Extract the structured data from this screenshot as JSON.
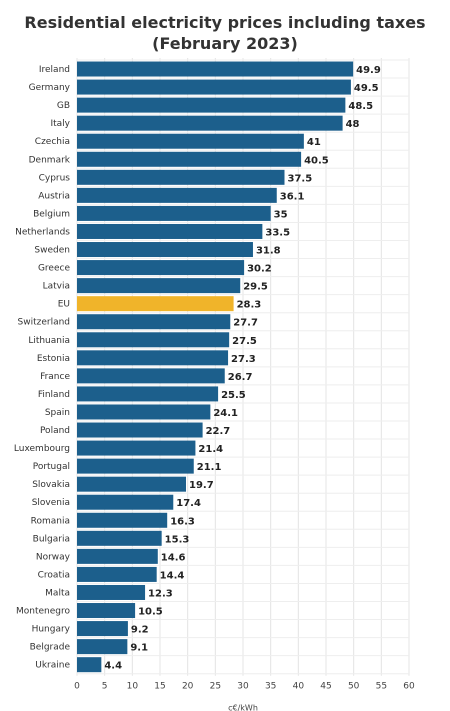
{
  "chart_data": {
    "type": "bar",
    "orientation": "horizontal",
    "title": "Residential electricity prices including taxes (February 2023)",
    "xlabel": "c€/kWh",
    "ylabel": "",
    "xlim": [
      0,
      60
    ],
    "xticks": [
      0,
      5,
      10,
      15,
      20,
      25,
      30,
      35,
      40,
      45,
      50,
      55,
      60
    ],
    "grid": true,
    "colors": {
      "default": "#1c5f8c",
      "highlight": "#f0b42a"
    },
    "highlight_category": "EU",
    "categories": [
      "Ireland",
      "Germany",
      "GB",
      "Italy",
      "Czechia",
      "Denmark",
      "Cyprus",
      "Austria",
      "Belgium",
      "Netherlands",
      "Sweden",
      "Greece",
      "Latvia",
      "EU",
      "Switzerland",
      "Lithuania",
      "Estonia",
      "France",
      "Finland",
      "Spain",
      "Poland",
      "Luxembourg",
      "Portugal",
      "Slovakia",
      "Slovenia",
      "Romania",
      "Bulgaria",
      "Norway",
      "Croatia",
      "Malta",
      "Montenegro",
      "Hungary",
      "Belgrade",
      "Ukraine"
    ],
    "values": [
      49.9,
      49.5,
      48.5,
      48,
      41,
      40.5,
      37.5,
      36.1,
      35,
      33.5,
      31.8,
      30.2,
      29.5,
      28.3,
      27.7,
      27.5,
      27.3,
      26.7,
      25.5,
      24.1,
      22.7,
      21.4,
      21.1,
      19.7,
      17.4,
      16.3,
      15.3,
      14.6,
      14.4,
      12.3,
      10.5,
      9.2,
      9.1,
      4.4
    ],
    "value_labels": [
      "49.9",
      "49.5",
      "48.5",
      "48",
      "41",
      "40.5",
      "37.5",
      "36.1",
      "35",
      "33.5",
      "31.8",
      "30.2",
      "29.5",
      "28.3",
      "27.7",
      "27.5",
      "27.3",
      "26.7",
      "25.5",
      "24.1",
      "22.7",
      "21.4",
      "21.1",
      "19.7",
      "17.4",
      "16.3",
      "15.3",
      "14.6",
      "14.4",
      "12.3",
      "10.5",
      "9.2",
      "9.1",
      "4.4"
    ]
  }
}
